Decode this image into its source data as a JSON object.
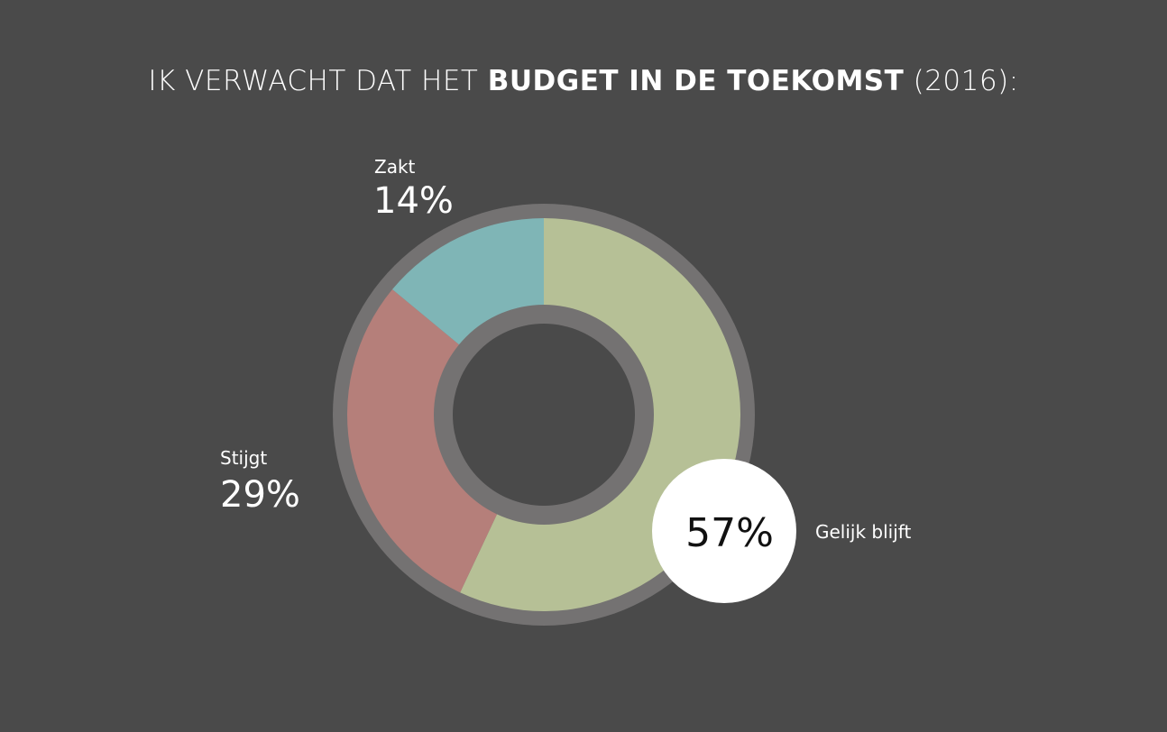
{
  "title": {
    "prefix": "IK VERWACHT DAT HET ",
    "bold": "BUDGET IN DE TOEKOMST",
    "suffix": " (2016):"
  },
  "colors": {
    "background": "#4a4a4a",
    "ring": "#747272",
    "gelijk": "#b6c096",
    "stijgt": "#b57f7a",
    "zakt": "#7fb5b6",
    "highlight_circle": "#ffffff"
  },
  "chart_data": {
    "type": "pie",
    "title": "IK VERWACHT DAT HET BUDGET IN DE TOEKOMST (2016):",
    "categories": [
      "Gelijk blijft",
      "Stijgt",
      "Zakt"
    ],
    "values": [
      57,
      29,
      14
    ],
    "value_labels": [
      "57%",
      "29%",
      "14%"
    ],
    "colors": [
      "#b6c096",
      "#b57f7a",
      "#7fb5b6"
    ],
    "start_angle_deg": 0,
    "direction": "clockwise",
    "donut": true,
    "highlight": "Gelijk blijft"
  }
}
